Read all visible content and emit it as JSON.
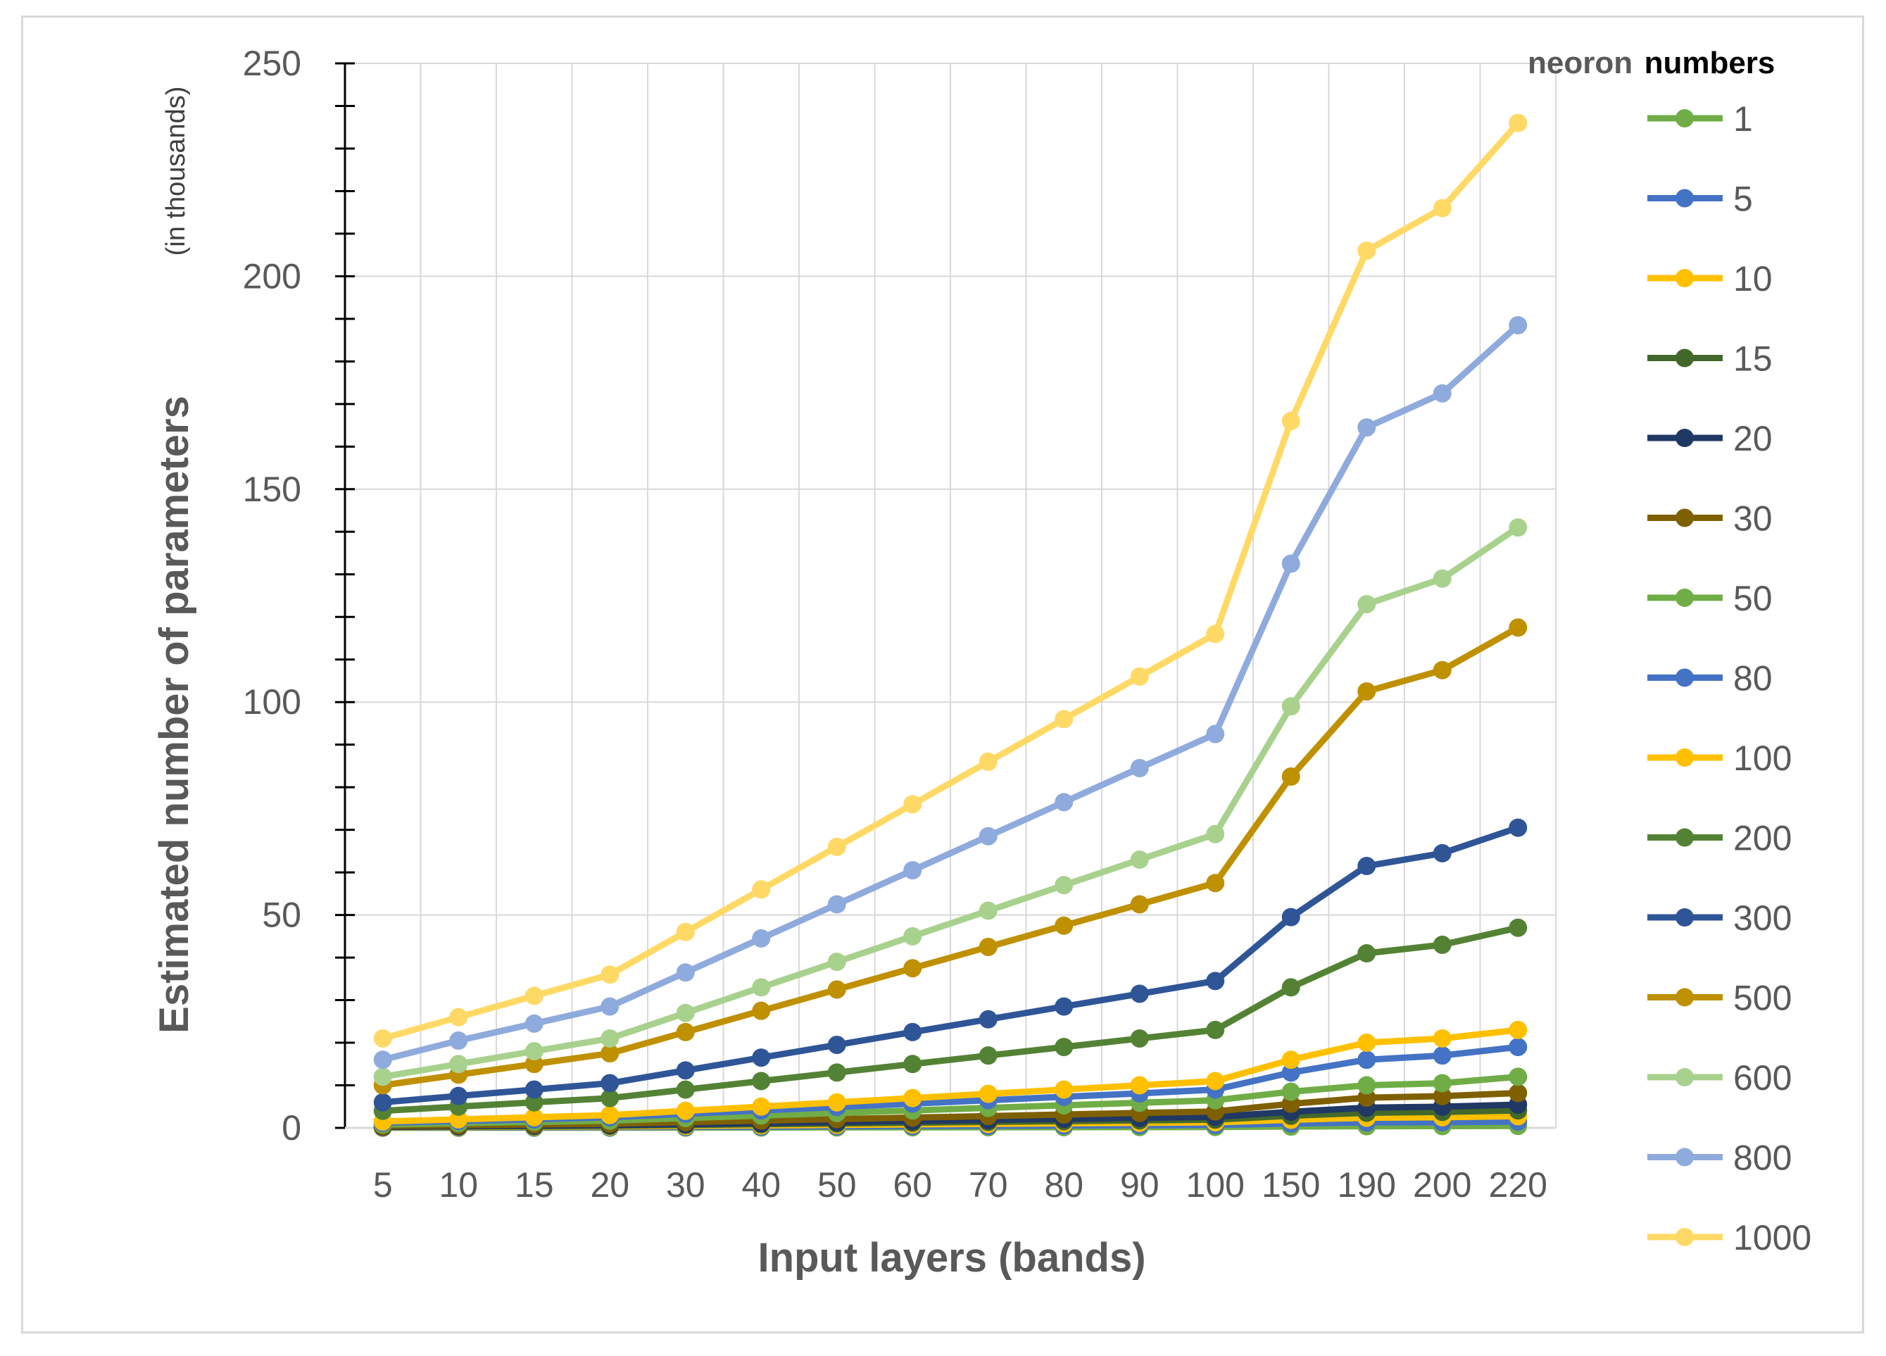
{
  "chart_data": {
    "type": "line",
    "title": "",
    "xlabel": "Input layers (bands)",
    "ylabel": "Estimated number of parameters",
    "ylabel_note": "(in thousands)",
    "legend_title_part1": "neoron",
    "legend_title_part2": "numbers",
    "legend_position": "right",
    "grid": true,
    "ylim": [
      0,
      250
    ],
    "yticks": [
      0,
      50,
      100,
      150,
      200,
      250
    ],
    "categories": [
      "5",
      "10",
      "15",
      "20",
      "30",
      "40",
      "50",
      "60",
      "70",
      "80",
      "90",
      "100",
      "150",
      "190",
      "200",
      "220"
    ],
    "series": [
      {
        "name": "1",
        "color": "#70ad47",
        "values": [
          0.02,
          0.03,
          0.04,
          0.05,
          0.07,
          0.09,
          0.11,
          0.13,
          0.15,
          0.17,
          0.19,
          0.21,
          0.31,
          0.39,
          0.41,
          0.45
        ]
      },
      {
        "name": "5",
        "color": "#4472c4",
        "values": [
          0.08,
          0.11,
          0.15,
          0.18,
          0.24,
          0.31,
          0.37,
          0.44,
          0.5,
          0.57,
          0.63,
          0.7,
          1.02,
          1.28,
          1.34,
          1.47
        ]
      },
      {
        "name": "10",
        "color": "#ffc000",
        "values": [
          0.15,
          0.21,
          0.28,
          0.34,
          0.46,
          0.58,
          0.7,
          0.82,
          0.94,
          1.06,
          1.18,
          1.3,
          1.9,
          2.38,
          2.5,
          2.74
        ]
      },
      {
        "name": "15",
        "color": "#43682b",
        "values": [
          0.22,
          0.31,
          0.4,
          0.5,
          0.68,
          0.86,
          1.04,
          1.22,
          1.4,
          1.58,
          1.76,
          1.94,
          2.84,
          3.56,
          3.74,
          4.1
        ]
      },
      {
        "name": "20",
        "color": "#203864",
        "values": [
          0.3,
          0.42,
          0.54,
          0.66,
          0.9,
          1.14,
          1.38,
          1.62,
          1.86,
          2.1,
          2.34,
          2.58,
          3.78,
          4.74,
          4.98,
          5.46
        ]
      },
      {
        "name": "30",
        "color": "#7f6000",
        "values": [
          0.44,
          0.62,
          0.8,
          0.98,
          1.34,
          1.7,
          2.06,
          2.42,
          2.78,
          3.14,
          3.5,
          3.86,
          5.66,
          7.1,
          7.46,
          8.18
        ]
      },
      {
        "name": "50",
        "color": "#70ad47",
        "values": [
          0.8,
          1.1,
          1.4,
          1.7,
          2.3,
          2.9,
          3.5,
          4.1,
          4.7,
          5.3,
          5.9,
          6.5,
          8.5,
          10.0,
          10.5,
          12.0
        ]
      },
      {
        "name": "80",
        "color": "#4472c4",
        "values": [
          1.2,
          1.6,
          2.0,
          2.5,
          3.3,
          4.1,
          4.9,
          5.7,
          6.5,
          7.3,
          8.1,
          9.0,
          13.0,
          16.0,
          17.0,
          19.0
        ]
      },
      {
        "name": "100",
        "color": "#ffc000",
        "values": [
          1.5,
          2.0,
          2.5,
          3.0,
          4.0,
          5.0,
          6.0,
          7.0,
          8.0,
          9.0,
          10.0,
          11.0,
          16.0,
          20.0,
          21.0,
          23.0
        ]
      },
      {
        "name": "200",
        "color": "#548235",
        "values": [
          4.0,
          5.0,
          6.0,
          7.0,
          9.0,
          11.0,
          13.0,
          15.0,
          17.0,
          19.0,
          21.0,
          23.0,
          33.0,
          41.0,
          43.0,
          47.0
        ]
      },
      {
        "name": "300",
        "color": "#2f5597",
        "values": [
          6.0,
          7.5,
          9.0,
          10.5,
          13.5,
          16.5,
          19.5,
          22.5,
          25.5,
          28.5,
          31.5,
          34.5,
          49.5,
          61.5,
          64.5,
          70.5
        ]
      },
      {
        "name": "500",
        "color": "#bf9000",
        "values": [
          10.0,
          12.5,
          15.0,
          17.5,
          22.5,
          27.5,
          32.5,
          37.5,
          42.5,
          47.5,
          52.5,
          57.5,
          82.5,
          102.5,
          107.5,
          117.5
        ]
      },
      {
        "name": "600",
        "color": "#a9d18e",
        "values": [
          12.0,
          15.0,
          18.0,
          21.0,
          27.0,
          33.0,
          39.0,
          45.0,
          51.0,
          57.0,
          63.0,
          69.0,
          99.0,
          123.0,
          129.0,
          141.0
        ]
      },
      {
        "name": "800",
        "color": "#8faadc",
        "values": [
          16.0,
          20.5,
          24.5,
          28.5,
          36.5,
          44.5,
          52.5,
          60.5,
          68.5,
          76.5,
          84.5,
          92.5,
          132.5,
          164.5,
          172.5,
          188.5
        ]
      },
      {
        "name": "1000",
        "color": "#ffd966",
        "values": [
          21.0,
          26.0,
          31.0,
          36.0,
          46.0,
          56.0,
          66.0,
          76.0,
          86.0,
          96.0,
          106.0,
          116.0,
          166.0,
          206.0,
          216.0,
          236.0
        ]
      }
    ]
  }
}
